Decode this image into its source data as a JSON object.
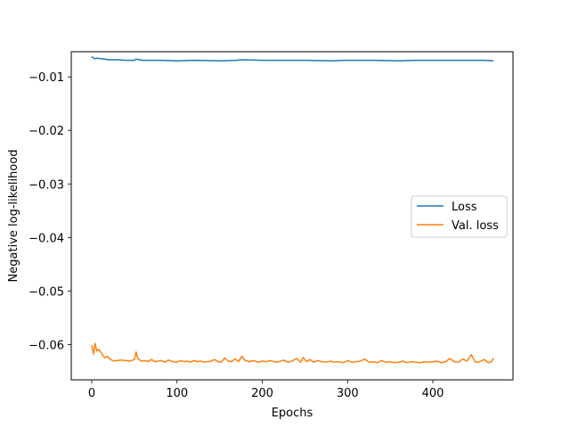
{
  "chart_data": {
    "type": "line",
    "title": "",
    "xlabel": "Epochs",
    "ylabel": "Negative log-likelihood",
    "xlim": [
      -24,
      494
    ],
    "ylim": [
      -0.0666,
      -0.0053
    ],
    "xticks": [
      0,
      100,
      200,
      300,
      400
    ],
    "yticks": [
      -0.01,
      -0.02,
      -0.03,
      -0.04,
      -0.05,
      -0.06
    ],
    "xtick_labels": [
      "0",
      "100",
      "200",
      "300",
      "400"
    ],
    "ytick_labels": [
      "−0.01",
      "−0.02",
      "−0.03",
      "−0.04",
      "−0.05",
      "−0.06"
    ],
    "grid": false,
    "legend_position": "center-right",
    "series": [
      {
        "name": "Loss",
        "color": "#1f77b4",
        "x": [
          0,
          3,
          6,
          10,
          20,
          30,
          40,
          50,
          52,
          60,
          80,
          100,
          120,
          150,
          170,
          175,
          200,
          220,
          250,
          280,
          300,
          330,
          360,
          380,
          400,
          420,
          440,
          460,
          471
        ],
        "y": [
          -0.0062,
          -0.0066,
          -0.0065,
          -0.0066,
          -0.0068,
          -0.0068,
          -0.0069,
          -0.0069,
          -0.0067,
          -0.0069,
          -0.0069,
          -0.007,
          -0.0069,
          -0.007,
          -0.0069,
          -0.0068,
          -0.0069,
          -0.0069,
          -0.0069,
          -0.007,
          -0.0069,
          -0.0069,
          -0.007,
          -0.0069,
          -0.0069,
          -0.0069,
          -0.0069,
          -0.0069,
          -0.007
        ]
      },
      {
        "name": "Val. loss",
        "color": "#ff7f0e",
        "x": [
          0,
          2,
          4,
          6,
          8,
          10,
          12,
          15,
          18,
          22,
          26,
          30,
          35,
          40,
          45,
          50,
          52,
          54,
          58,
          62,
          66,
          70,
          74,
          78,
          82,
          86,
          90,
          95,
          100,
          104,
          108,
          112,
          116,
          120,
          124,
          128,
          132,
          136,
          140,
          144,
          148,
          152,
          156,
          160,
          164,
          168,
          172,
          176,
          180,
          185,
          190,
          195,
          200,
          205,
          210,
          215,
          220,
          225,
          230,
          235,
          240,
          245,
          248,
          252,
          256,
          260,
          265,
          270,
          275,
          280,
          285,
          290,
          295,
          300,
          305,
          310,
          315,
          320,
          325,
          330,
          335,
          340,
          345,
          350,
          355,
          360,
          365,
          370,
          375,
          380,
          385,
          390,
          395,
          400,
          405,
          410,
          415,
          420,
          425,
          430,
          435,
          440,
          445,
          450,
          455,
          460,
          465,
          469,
          471
        ],
        "y": [
          -0.0601,
          -0.0618,
          -0.0598,
          -0.0612,
          -0.0609,
          -0.0613,
          -0.0617,
          -0.0625,
          -0.0622,
          -0.0628,
          -0.0631,
          -0.063,
          -0.0629,
          -0.063,
          -0.0631,
          -0.0628,
          -0.0614,
          -0.0626,
          -0.0631,
          -0.063,
          -0.0632,
          -0.0628,
          -0.0632,
          -0.0631,
          -0.063,
          -0.0633,
          -0.0629,
          -0.0632,
          -0.0633,
          -0.063,
          -0.0632,
          -0.0631,
          -0.0633,
          -0.063,
          -0.0632,
          -0.0631,
          -0.0633,
          -0.0632,
          -0.0631,
          -0.0628,
          -0.0632,
          -0.0633,
          -0.0625,
          -0.0631,
          -0.0632,
          -0.0627,
          -0.0632,
          -0.0622,
          -0.063,
          -0.0632,
          -0.063,
          -0.0633,
          -0.0631,
          -0.0632,
          -0.063,
          -0.0633,
          -0.0632,
          -0.0629,
          -0.0633,
          -0.0631,
          -0.0626,
          -0.0633,
          -0.0624,
          -0.0632,
          -0.0628,
          -0.0633,
          -0.063,
          -0.0632,
          -0.0633,
          -0.0631,
          -0.0633,
          -0.0632,
          -0.0634,
          -0.063,
          -0.0633,
          -0.0632,
          -0.0631,
          -0.0627,
          -0.0633,
          -0.0632,
          -0.0634,
          -0.063,
          -0.0633,
          -0.0632,
          -0.0634,
          -0.0633,
          -0.0631,
          -0.0634,
          -0.0632,
          -0.0633,
          -0.0634,
          -0.0632,
          -0.0633,
          -0.0632,
          -0.0631,
          -0.0634,
          -0.0632,
          -0.0626,
          -0.0632,
          -0.0633,
          -0.0627,
          -0.0631,
          -0.0619,
          -0.0633,
          -0.0632,
          -0.0628,
          -0.0634,
          -0.0632,
          -0.0625
        ]
      }
    ]
  }
}
